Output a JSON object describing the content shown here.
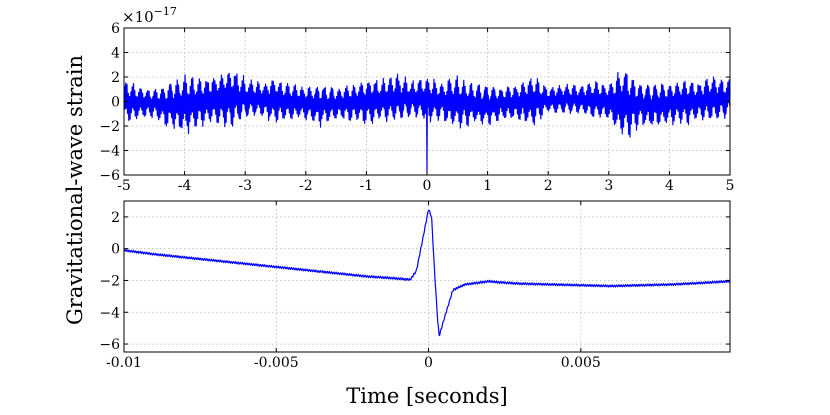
{
  "ylabel": "Gravitational-wave strain",
  "xlabel": "Time [seconds]",
  "chart_data": [
    {
      "type": "line",
      "panel": "top",
      "xlim": [
        -5,
        5
      ],
      "ylim": [
        -6,
        6
      ],
      "x_ticks": [
        -5,
        -4,
        -3,
        -2,
        -1,
        0,
        1,
        2,
        3,
        4,
        5
      ],
      "x_tick_labels": [
        "-5",
        "-4",
        "-3",
        "-2",
        "-1",
        "0",
        "1",
        "2",
        "3",
        "4",
        "5"
      ],
      "y_ticks": [
        -6,
        -4,
        -2,
        0,
        2,
        4,
        6
      ],
      "y_tick_labels": [
        "−6",
        "−4",
        "−2",
        "0",
        "2",
        "4",
        "6"
      ],
      "y_offset_base": "×10",
      "y_offset_exp": "−17",
      "grid": true,
      "color": "#0000ff",
      "series": [
        {
          "description_of_shape": "noise envelope",
          "x": [
            -5,
            -4.75,
            -4.5,
            -4.25,
            -4.0,
            -3.75,
            -3.5,
            -3.25,
            -3.0,
            -2.75,
            -2.5,
            -2.25,
            -2.0,
            -1.75,
            -1.5,
            -1.25,
            -1.0,
            -0.75,
            -0.5,
            -0.25,
            0,
            0.25,
            0.5,
            0.75,
            1.0,
            1.25,
            1.5,
            1.75,
            2.0,
            2.25,
            2.5,
            2.75,
            3.0,
            3.25,
            3.5,
            3.75,
            4.0,
            4.25,
            4.5,
            4.75,
            5
          ],
          "amplitude": [
            2.0,
            1.6,
            1.4,
            2.4,
            3.0,
            2.2,
            2.4,
            3.2,
            2.0,
            1.8,
            2.2,
            1.8,
            1.6,
            2.2,
            1.6,
            1.8,
            2.2,
            2.0,
            2.5,
            1.8,
            2.2,
            1.8,
            2.6,
            2.0,
            2.2,
            1.6,
            1.8,
            2.4,
            1.2,
            1.6,
            1.4,
            1.8,
            1.8,
            3.8,
            2.2,
            2.4,
            2.0,
            2.2,
            1.8,
            2.4,
            1.8
          ]
        }
      ],
      "spikes": [
        {
          "x": 0.0,
          "y": -5.7
        }
      ]
    },
    {
      "type": "line",
      "panel": "bottom",
      "xlim": [
        -0.01,
        0.0099
      ],
      "ylim": [
        -6.5,
        3.0
      ],
      "x_ticks": [
        -0.01,
        -0.005,
        0,
        0.005
      ],
      "x_tick_labels": [
        "-0.01",
        "-0.005",
        "0",
        "0.005"
      ],
      "y_ticks": [
        -6,
        -4,
        -2,
        0,
        2
      ],
      "y_tick_labels": [
        "−6",
        "−4",
        "−2",
        "0",
        "2"
      ],
      "grid": true,
      "color": "#0000ff",
      "series": [
        {
          "x": [
            -0.01,
            -0.009,
            -0.008,
            -0.007,
            -0.006,
            -0.005,
            -0.004,
            -0.003,
            -0.002,
            -0.0012,
            -0.0006,
            -0.0004,
            -0.0002,
            0.0,
            0.0001,
            0.0002,
            0.0003,
            0.00035,
            0.0005,
            0.0008,
            0.0012,
            0.0016,
            0.002,
            0.0022,
            0.003,
            0.004,
            0.005,
            0.006,
            0.007,
            0.008,
            0.009,
            0.0099
          ],
          "y": [
            -0.1,
            -0.35,
            -0.55,
            -0.75,
            -0.95,
            -1.15,
            -1.35,
            -1.55,
            -1.75,
            -1.85,
            -1.95,
            -1.4,
            0.5,
            2.5,
            2.0,
            -1.5,
            -4.5,
            -5.5,
            -4.5,
            -2.6,
            -2.25,
            -2.15,
            -2.05,
            -2.1,
            -2.2,
            -2.25,
            -2.3,
            -2.35,
            -2.3,
            -2.25,
            -2.15,
            -2.05
          ]
        }
      ]
    }
  ]
}
